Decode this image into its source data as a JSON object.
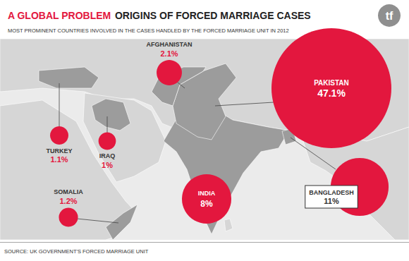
{
  "chart_data": {
    "type": "bubble",
    "title": [
      "A GLOBAL PROBLEM",
      "ORIGINS OF FORCED MARRIAGE CASES"
    ],
    "subtitle": "MOST PROMINENT COUNTRIES INVOLVED IN THE CASES HANDLED BY THE FORCED MARRIAGE UNIT IN 2012",
    "source": "SOURCE: UK GOVERNMENT'S FORCED MARRIAGE UNIT",
    "logo": "tf",
    "categories": [
      "PAKISTAN",
      "BANGLADESH",
      "INDIA",
      "AFGHANISTAN",
      "SOMALIA",
      "TURKEY",
      "IRAQ"
    ],
    "values": [
      47.1,
      11,
      8,
      2.1,
      1.2,
      1.1,
      1
    ],
    "value_labels": [
      "47.1%",
      "11%",
      "8%",
      "2.1%",
      "1.2%",
      "1.1%",
      "1%"
    ],
    "color": "#e3173e",
    "data_labels": true,
    "tick_labels": false
  }
}
